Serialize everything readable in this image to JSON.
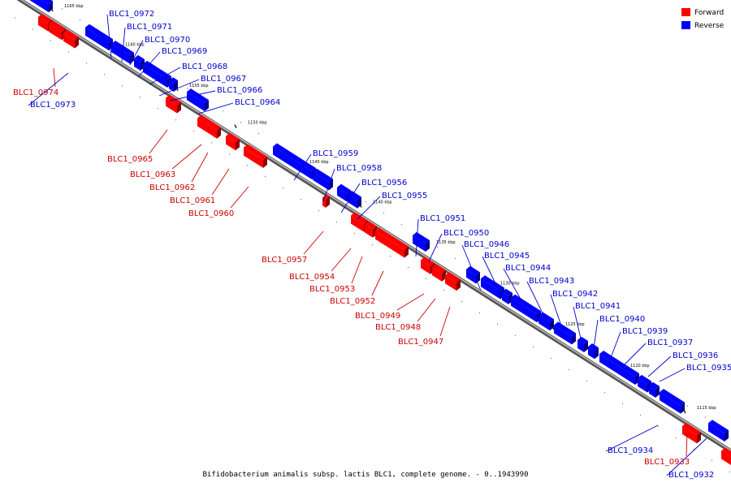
{
  "caption": "Bifidobacterium animalis subsp. lactis BLC1, complete genome. - 0..1943990",
  "legend": {
    "forward_label": "Forward",
    "reverse_label": "Reverse",
    "forward_color": "#ff0000",
    "reverse_color": "#0000ff"
  },
  "ticks": [
    "1165 kbp",
    "1160 kbp",
    "1155 kbp",
    "1150 kbp",
    "1145 kbp",
    "1140 kbp",
    "1135 kbp",
    "1130 kbp",
    "1125 kbp",
    "1120 kbp",
    "1115 kbp"
  ],
  "forward_genes": [
    "BLC1_0974",
    "BLC1_0965",
    "BLC1_0963",
    "BLC1_0962",
    "BLC1_0961",
    "BLC1_0960",
    "BLC1_0957",
    "BLC1_0954",
    "BLC1_0953",
    "BLC1_0952",
    "BLC1_0949",
    "BLC1_0948",
    "BLC1_0947",
    "BLC1_0933"
  ],
  "reverse_genes": [
    "BLC1_0973",
    "BLC1_0972",
    "BLC1_0971",
    "BLC1_0970",
    "BLC1_0969",
    "BLC1_0968",
    "BLC1_0967",
    "BLC1_0966",
    "BLC1_0964",
    "BLC1_0959",
    "BLC1_0958",
    "BLC1_0956",
    "BLC1_0955",
    "BLC1_0951",
    "BLC1_0950",
    "BLC1_0946",
    "BLC1_0945",
    "BLC1_0944",
    "BLC1_0943",
    "BLC1_0942",
    "BLC1_0941",
    "BLC1_0940",
    "BLC1_0939",
    "BLC1_0937",
    "BLC1_0936",
    "BLC1_0935",
    "BLC1_0934",
    "BLC1_0932"
  ]
}
